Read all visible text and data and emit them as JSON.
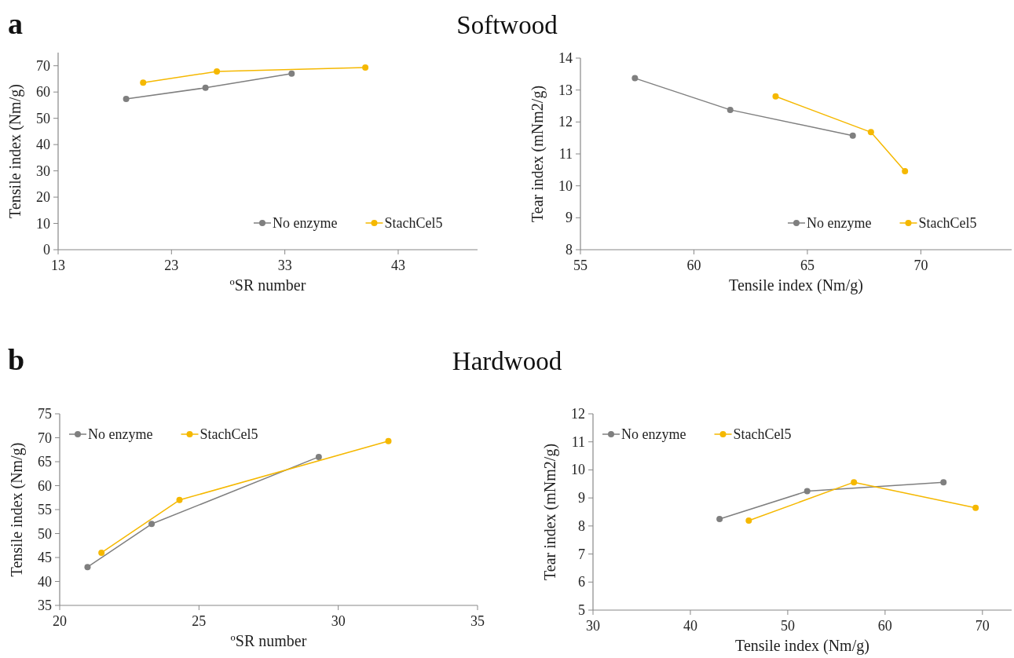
{
  "chart_data": [
    {
      "type": "line",
      "title": "Softwood",
      "annotations": [
        "a"
      ],
      "xlabel": "ºSR number",
      "ylabel": "Tensile index (Nm/g)",
      "xlim": [
        13,
        50
      ],
      "xticks": [
        13,
        23,
        33,
        43
      ],
      "ylim": [
        0,
        75
      ],
      "yticks": [
        0,
        10,
        20,
        30,
        40,
        50,
        60,
        70
      ],
      "grid": false,
      "legend": "bottom right",
      "marker": "circle",
      "series": [
        {
          "name": "No enzyme",
          "color": "#7f7f7f",
          "x": [
            19.0,
            26.0,
            33.6
          ],
          "values": [
            57.4,
            61.6,
            67.0
          ]
        },
        {
          "name": "StachCel5",
          "color": "#f5b800",
          "x": [
            20.5,
            27.0,
            40.1
          ],
          "values": [
            63.6,
            67.8,
            69.3
          ]
        }
      ]
    },
    {
      "type": "line",
      "xlabel": "Tensile index (Nm/g)",
      "ylabel": "Tear index (mNm2/g)",
      "xlim": [
        55,
        74
      ],
      "xticks": [
        55,
        60,
        65,
        70
      ],
      "ylim": [
        8,
        14
      ],
      "yticks": [
        8,
        9,
        10,
        11,
        12,
        13,
        14
      ],
      "grid": false,
      "legend": "bottom right",
      "marker": "circle",
      "series": [
        {
          "name": "No enzyme",
          "color": "#7f7f7f",
          "x": [
            57.4,
            61.6,
            67.0
          ],
          "values": [
            13.37,
            12.38,
            11.57
          ]
        },
        {
          "name": "StachCel5",
          "color": "#f5b800",
          "x": [
            63.6,
            67.8,
            69.3
          ],
          "values": [
            12.8,
            11.68,
            10.46
          ]
        }
      ]
    },
    {
      "type": "line",
      "title": "Hardwood",
      "annotations": [
        "b"
      ],
      "xlabel": "ºSR number",
      "ylabel": "Tensile index (Nm/g)",
      "xlim": [
        20,
        35
      ],
      "xticks": [
        20,
        25,
        30,
        35
      ],
      "ylim": [
        35,
        75
      ],
      "yticks": [
        35,
        40,
        45,
        50,
        55,
        60,
        65,
        70,
        75
      ],
      "grid": false,
      "legend": "top left",
      "marker": "circle",
      "series": [
        {
          "name": "No enzyme",
          "color": "#7f7f7f",
          "x": [
            21.0,
            23.3,
            29.3
          ],
          "values": [
            43,
            52,
            66
          ]
        },
        {
          "name": "StachCel5",
          "color": "#f5b800",
          "x": [
            21.5,
            24.3,
            31.8
          ],
          "values": [
            46,
            57,
            69.3
          ]
        }
      ]
    },
    {
      "type": "line",
      "xlabel": "Tensile index (Nm/g)",
      "ylabel": "Tear index (mNm2/g)",
      "xlim": [
        30,
        73
      ],
      "xticks": [
        30,
        40,
        50,
        60,
        70
      ],
      "ylim": [
        5,
        12
      ],
      "yticks": [
        5,
        6,
        7,
        8,
        9,
        10,
        11,
        12
      ],
      "grid": false,
      "legend": "top left",
      "marker": "circle",
      "series": [
        {
          "name": "No enzyme",
          "color": "#7f7f7f",
          "x": [
            43,
            52,
            66
          ],
          "values": [
            8.25,
            9.24,
            9.56
          ]
        },
        {
          "name": "StachCel5",
          "color": "#f5b800",
          "x": [
            46,
            56.8,
            69.3
          ],
          "values": [
            8.19,
            9.56,
            8.65
          ]
        }
      ]
    }
  ]
}
